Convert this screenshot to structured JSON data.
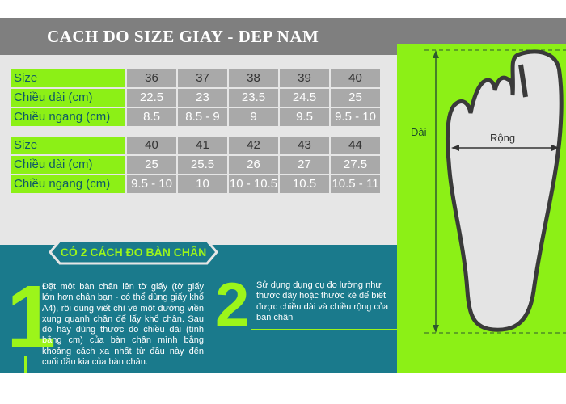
{
  "title": "CACH DO SIZE GIAY - DEP NAM",
  "row_labels": {
    "size": "Size",
    "length": "Chiều dài (cm)",
    "width": "Chiều ngang (cm)"
  },
  "table1": {
    "size": [
      "36",
      "37",
      "38",
      "39",
      "40"
    ],
    "length": [
      "22.5",
      "23",
      "23.5",
      "24.5",
      "25"
    ],
    "width": [
      "8.5",
      "8.5 - 9",
      "9",
      "9.5",
      "9.5 - 10"
    ]
  },
  "table2": {
    "size": [
      "40",
      "41",
      "42",
      "43",
      "44"
    ],
    "length": [
      "25",
      "25.5",
      "26",
      "27",
      "27.5"
    ],
    "width": [
      "9.5 - 10",
      "10",
      "10 - 10.5",
      "10.5",
      "10.5 - 11"
    ]
  },
  "methods": {
    "heading": "CÓ 2 CÁCH ĐO BÀN CHÂN",
    "items": [
      {
        "number": "1",
        "text": "Đặt một bàn chân lên tờ giấy (tờ giấy lớn hơn chân bạn - có thể dùng giấy khổ A4), rồi dùng viết chì vẽ một đường viền xung quanh chân để lấy khổ chân. Sau đó hãy dùng thước đo chiều dài (tính bằng cm) của bàn chân mình bằng khoảng cách xa nhất từ đầu này đến cuối đầu kia của bàn chân."
      },
      {
        "number": "2",
        "text": "Sử  dụng dụng cụ đo lường như thước dây hoặc thước kẻ để biết được chiều dài và chiều rộng của bàn chân"
      }
    ]
  },
  "diagram": {
    "length_label": "Dài",
    "width_label": "Rộng"
  },
  "colors": {
    "lime": "#8cf016",
    "teal": "#1a7a8c",
    "gray": "#7f7f7f"
  }
}
